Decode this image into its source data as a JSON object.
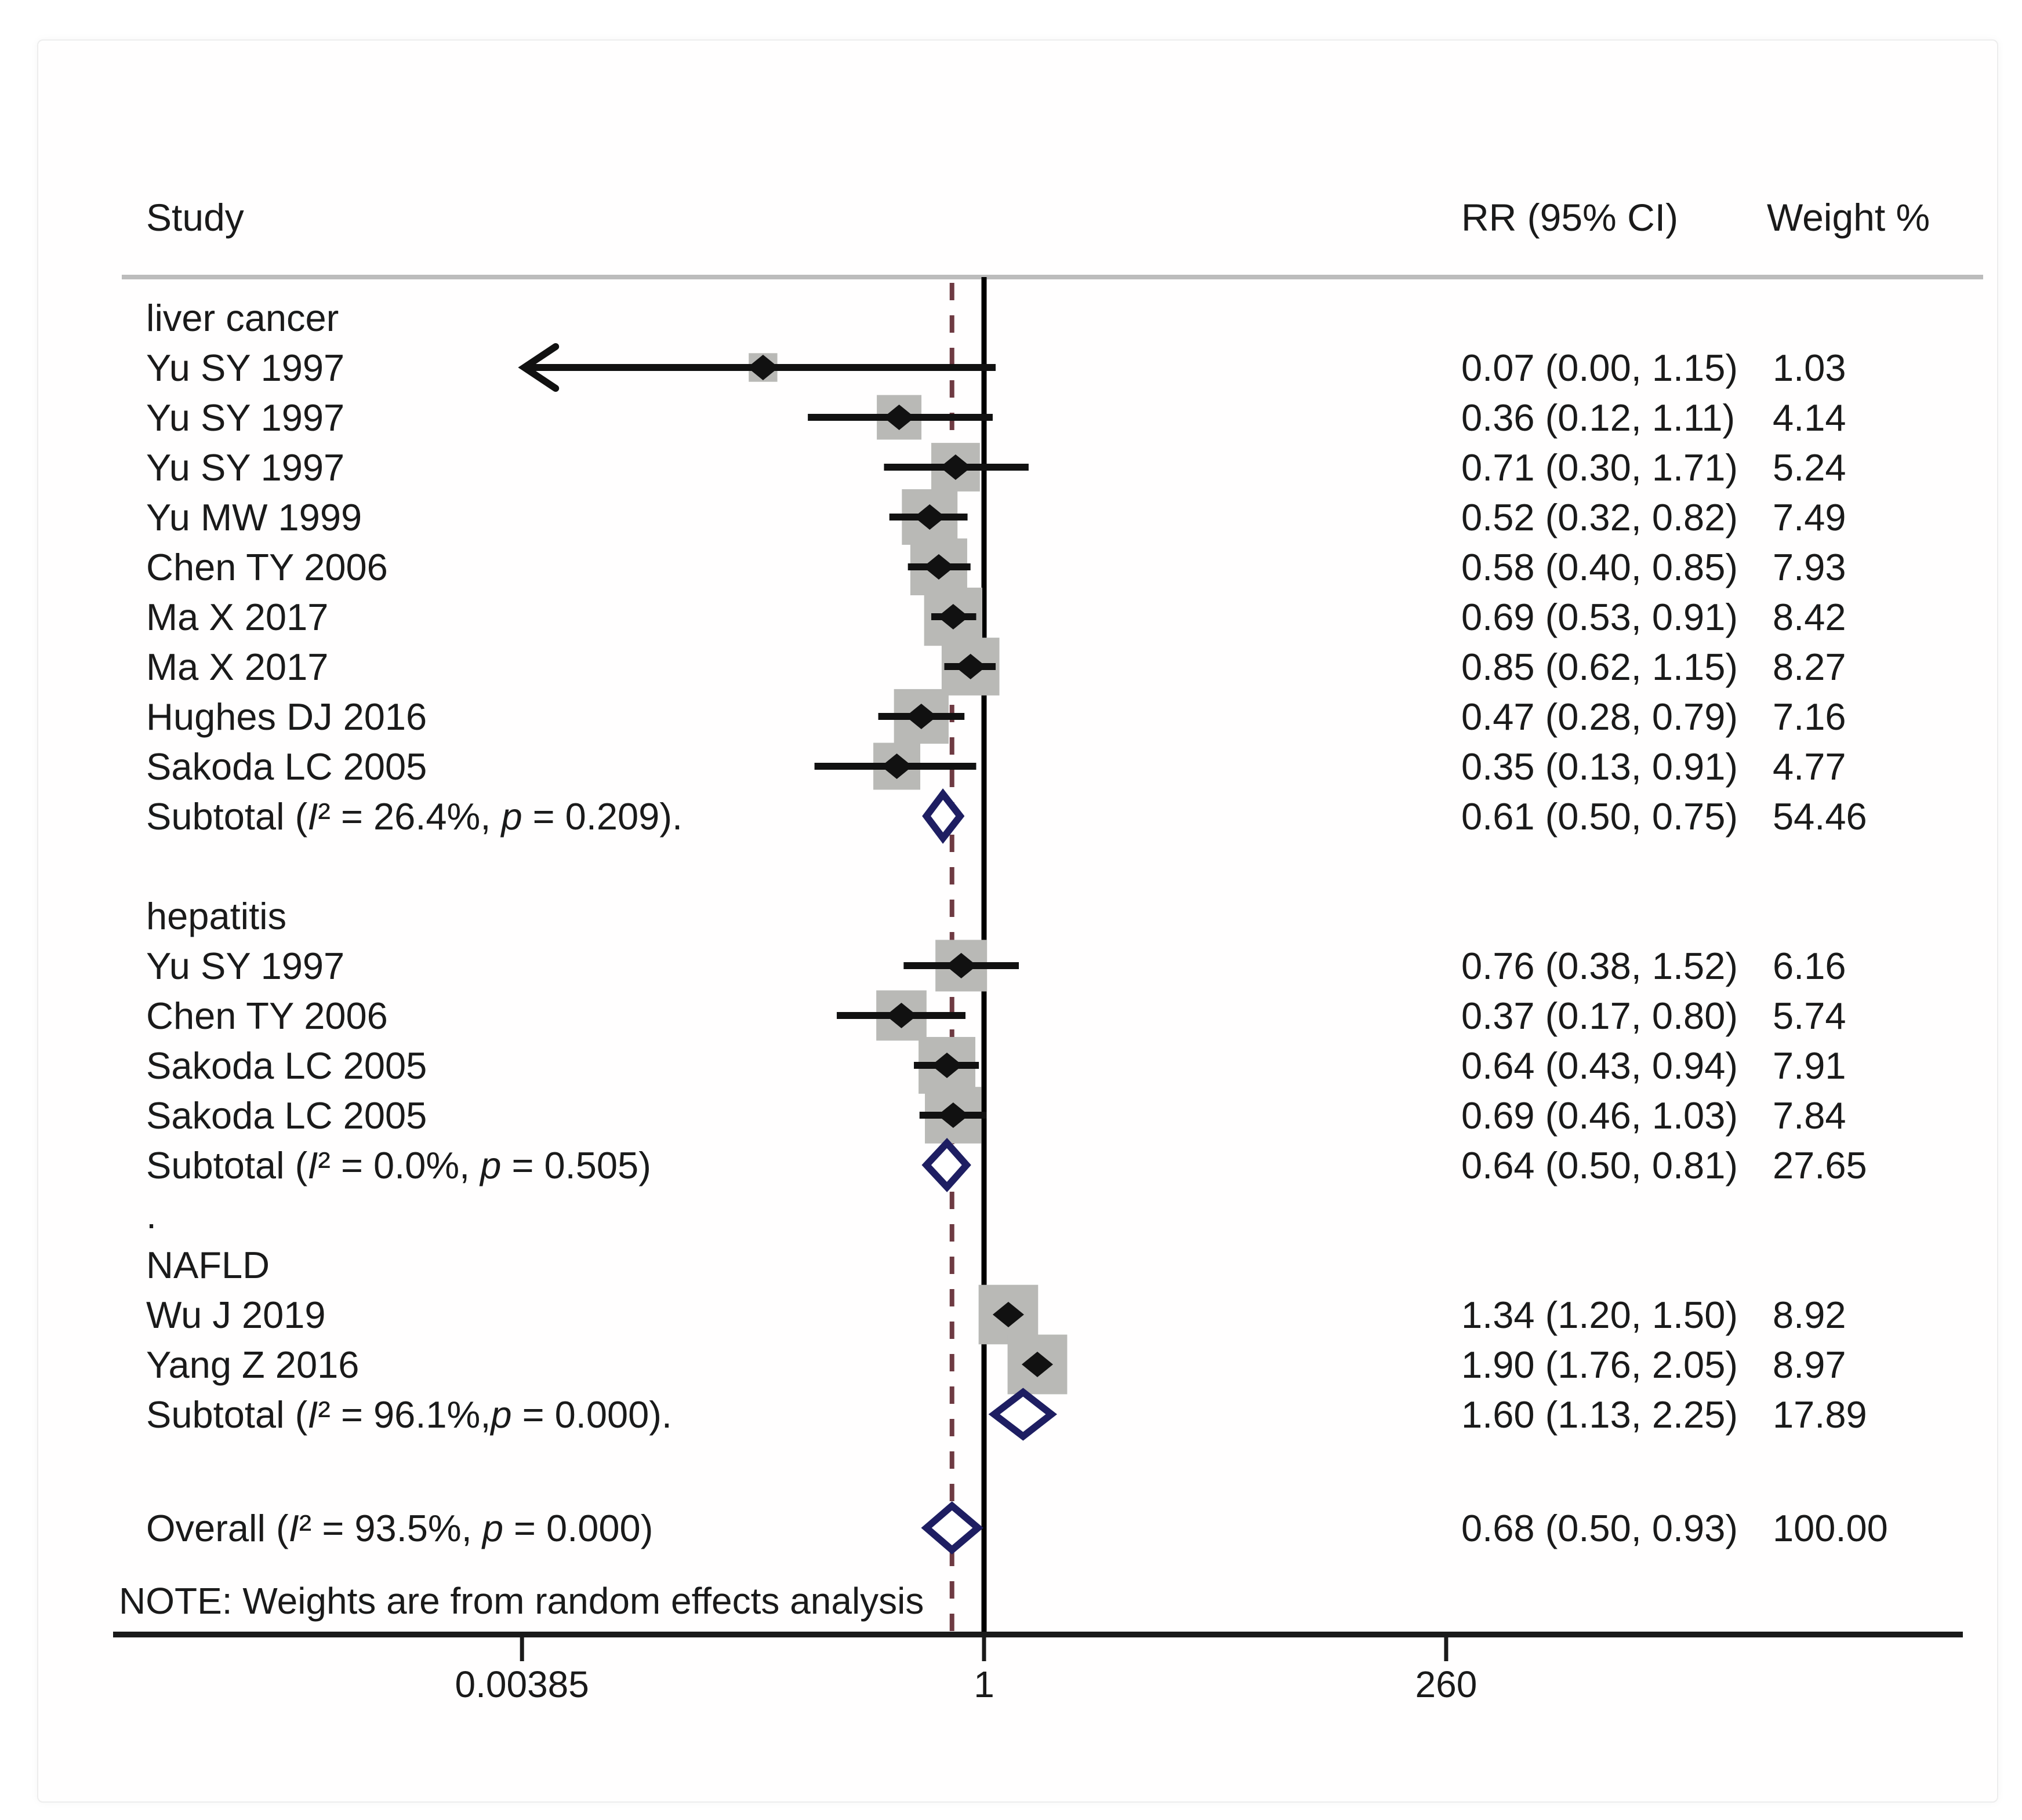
{
  "header": {
    "study": "Study",
    "rr": "RR (95% CI)",
    "weight": "Weight %"
  },
  "chart_data": {
    "type": "forest",
    "x_axis": {
      "scale": "log",
      "tick_labels": [
        "0.00385",
        "1",
        "260"
      ],
      "tick_values": [
        0.00385,
        1,
        260
      ],
      "range": [
        0.00385,
        260
      ],
      "ref_line": 1.0,
      "pooled_dashed_line": 0.68
    },
    "columns": [
      "Study",
      "RR (95% CI)",
      "Weight %"
    ],
    "groups": [
      {
        "name": "liver cancer",
        "studies": [
          {
            "label": "Yu SY 1997",
            "rr": 0.07,
            "ci_low": 0.0,
            "ci_high": 1.15,
            "weight": 1.03,
            "rr_text": "0.07 (0.00, 1.15)",
            "weight_text": "1.03",
            "left_arrow": true
          },
          {
            "label": "Yu SY 1997",
            "rr": 0.36,
            "ci_low": 0.12,
            "ci_high": 1.11,
            "weight": 4.14,
            "rr_text": "0.36 (0.12, 1.11)",
            "weight_text": "4.14"
          },
          {
            "label": "Yu SY 1997",
            "rr": 0.71,
            "ci_low": 0.3,
            "ci_high": 1.71,
            "weight": 5.24,
            "rr_text": "0.71 (0.30, 1.71)",
            "weight_text": "5.24"
          },
          {
            "label": "Yu MW 1999",
            "rr": 0.52,
            "ci_low": 0.32,
            "ci_high": 0.82,
            "weight": 7.49,
            "rr_text": "0.52 (0.32, 0.82)",
            "weight_text": "7.49"
          },
          {
            "label": "Chen TY 2006",
            "rr": 0.58,
            "ci_low": 0.4,
            "ci_high": 0.85,
            "weight": 7.93,
            "rr_text": "0.58 (0.40, 0.85)",
            "weight_text": "7.93"
          },
          {
            "label": "Ma X 2017",
            "rr": 0.69,
            "ci_low": 0.53,
            "ci_high": 0.91,
            "weight": 8.42,
            "rr_text": "0.69 (0.53, 0.91)",
            "weight_text": "8.42"
          },
          {
            "label": "Ma X 2017",
            "rr": 0.85,
            "ci_low": 0.62,
            "ci_high": 1.15,
            "weight": 8.27,
            "rr_text": "0.85 (0.62, 1.15)",
            "weight_text": "8.27"
          },
          {
            "label": "Hughes DJ 2016",
            "rr": 0.47,
            "ci_low": 0.28,
            "ci_high": 0.79,
            "weight": 7.16,
            "rr_text": "0.47 (0.28, 0.79)",
            "weight_text": "7.16"
          },
          {
            "label": "Sakoda LC 2005",
            "rr": 0.35,
            "ci_low": 0.13,
            "ci_high": 0.91,
            "weight": 4.77,
            "rr_text": "0.35 (0.13, 0.91)",
            "weight_text": "4.77"
          }
        ],
        "subtotal": {
          "label": "Subtotal  (I² = 26.4%, p = 0.209).",
          "rr": 0.61,
          "ci_low": 0.5,
          "ci_high": 0.75,
          "rr_text": "0.61 (0.50, 0.75)",
          "weight_text": "54.46"
        },
        "after_text": ""
      },
      {
        "name": "hepatitis",
        "studies": [
          {
            "label": "Yu SY 1997",
            "rr": 0.76,
            "ci_low": 0.38,
            "ci_high": 1.52,
            "weight": 6.16,
            "rr_text": "0.76 (0.38, 1.52)",
            "weight_text": "6.16"
          },
          {
            "label": "Chen TY 2006",
            "rr": 0.37,
            "ci_low": 0.17,
            "ci_high": 0.8,
            "weight": 5.74,
            "rr_text": "0.37 (0.17, 0.80)",
            "weight_text": "5.74"
          },
          {
            "label": "Sakoda LC 2005",
            "rr": 0.64,
            "ci_low": 0.43,
            "ci_high": 0.94,
            "weight": 7.91,
            "rr_text": "0.64 (0.43, 0.94)",
            "weight_text": "7.91"
          },
          {
            "label": "Sakoda LC 2005",
            "rr": 0.69,
            "ci_low": 0.46,
            "ci_high": 1.03,
            "weight": 7.84,
            "rr_text": "0.69 (0.46, 1.03)",
            "weight_text": "7.84"
          }
        ],
        "subtotal": {
          "label": "Subtotal  (I² = 0.0%, p = 0.505)",
          "rr": 0.64,
          "ci_low": 0.5,
          "ci_high": 0.81,
          "rr_text": "0.64 (0.50, 0.81)",
          "weight_text": "27.65"
        },
        "after_text": "."
      },
      {
        "name": "NAFLD",
        "studies": [
          {
            "label": "Wu J 2019",
            "rr": 1.34,
            "ci_low": 1.2,
            "ci_high": 1.5,
            "weight": 8.92,
            "rr_text": "1.34 (1.20, 1.50)",
            "weight_text": "8.92"
          },
          {
            "label": "Yang Z 2016",
            "rr": 1.9,
            "ci_low": 1.76,
            "ci_high": 2.05,
            "weight": 8.97,
            "rr_text": "1.90 (1.76, 2.05)",
            "weight_text": "8.97"
          }
        ],
        "subtotal": {
          "label": "Subtotal  (I² = 96.1%,p = 0.000).",
          "rr": 1.6,
          "ci_low": 1.13,
          "ci_high": 2.25,
          "rr_text": "1.60 (1.13, 2.25)",
          "weight_text": "17.89"
        },
        "after_text": ""
      }
    ],
    "overall": {
      "label": "Overall  (I² = 93.5%, p = 0.000)",
      "rr": 0.68,
      "ci_low": 0.5,
      "ci_high": 0.93,
      "rr_text": "0.68 (0.50, 0.93)",
      "weight_text": "100.00"
    },
    "note": "NOTE: Weights are from random effects analysis",
    "colors": {
      "square": "#b9b9b6",
      "ci_line": "#111111",
      "point_marker": "#111111",
      "diamond_outline": "#1e1e62",
      "diamond_fill": "#ffffff",
      "ref_line": "#000000",
      "pooled_line": "#6e3a42",
      "header_rule": "#bcbcbc",
      "axis": "#1a1a1a",
      "text": "#1a1a1a"
    }
  }
}
